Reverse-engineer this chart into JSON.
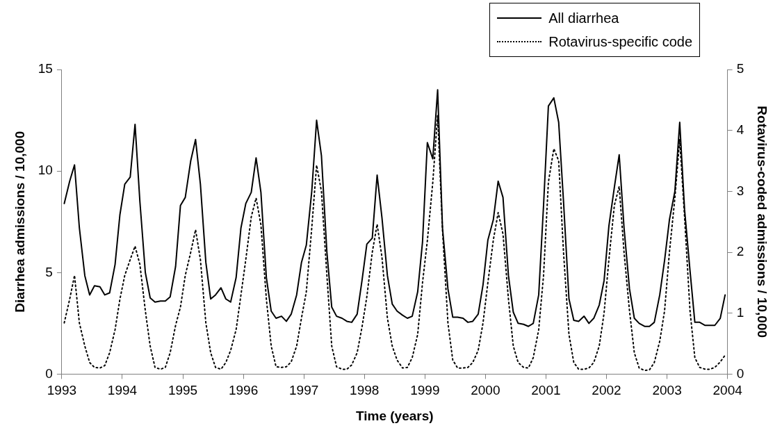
{
  "chart_data": {
    "type": "line",
    "xlabel": "Time (years)",
    "ylabel": "Diarrhea admissions / 10,000",
    "y2label": "Rotavirus-coded admissions / 10,000",
    "x": [
      1993.04,
      1993.13,
      1993.21,
      1993.29,
      1993.38,
      1993.46,
      1993.54,
      1993.63,
      1993.71,
      1993.79,
      1993.88,
      1993.96,
      1994.04,
      1994.13,
      1994.21,
      1994.29,
      1994.38,
      1994.46,
      1994.54,
      1994.63,
      1994.71,
      1994.79,
      1994.88,
      1994.96,
      1995.04,
      1995.13,
      1995.21,
      1995.29,
      1995.38,
      1995.46,
      1995.54,
      1995.63,
      1995.71,
      1995.79,
      1995.88,
      1995.96,
      1996.04,
      1996.13,
      1996.21,
      1996.29,
      1996.38,
      1996.46,
      1996.54,
      1996.63,
      1996.71,
      1996.79,
      1996.88,
      1996.96,
      1997.04,
      1997.13,
      1997.21,
      1997.29,
      1997.38,
      1997.46,
      1997.54,
      1997.63,
      1997.71,
      1997.79,
      1997.88,
      1997.96,
      1998.04,
      1998.13,
      1998.21,
      1998.29,
      1998.38,
      1998.46,
      1998.54,
      1998.63,
      1998.71,
      1998.79,
      1998.88,
      1998.96,
      1999.04,
      1999.13,
      1999.21,
      1999.29,
      1999.38,
      1999.46,
      1999.54,
      1999.63,
      1999.71,
      1999.79,
      1999.88,
      1999.96,
      2000.04,
      2000.13,
      2000.21,
      2000.29,
      2000.38,
      2000.46,
      2000.54,
      2000.63,
      2000.71,
      2000.79,
      2000.88,
      2000.96,
      2001.04,
      2001.13,
      2001.21,
      2001.29,
      2001.38,
      2001.46,
      2001.54,
      2001.63,
      2001.71,
      2001.79,
      2001.88,
      2001.96,
      2002.04,
      2002.13,
      2002.21,
      2002.29,
      2002.38,
      2002.46,
      2002.54,
      2002.63,
      2002.71,
      2002.79,
      2002.88,
      2002.96,
      2003.04,
      2003.13,
      2003.21,
      2003.29,
      2003.38,
      2003.46,
      2003.54,
      2003.63,
      2003.71,
      2003.79,
      2003.88,
      2003.96
    ],
    "series": [
      {
        "name": "All diarrhea",
        "color": "#000000",
        "line_style": "solid",
        "values": [
          8.4,
          9.5,
          10.3,
          7.2,
          4.85,
          3.9,
          4.35,
          4.3,
          3.9,
          4.0,
          5.4,
          7.85,
          9.35,
          9.7,
          12.3,
          8.5,
          5.0,
          3.75,
          3.55,
          3.6,
          3.6,
          3.8,
          5.3,
          8.3,
          8.7,
          10.5,
          11.55,
          9.35,
          5.5,
          3.7,
          3.9,
          4.25,
          3.7,
          3.55,
          4.75,
          7.2,
          8.4,
          8.95,
          10.65,
          8.95,
          4.75,
          3.1,
          2.75,
          2.85,
          2.6,
          2.95,
          3.9,
          5.5,
          6.35,
          9.0,
          12.5,
          10.75,
          6.0,
          3.3,
          2.85,
          2.75,
          2.6,
          2.55,
          2.95,
          4.6,
          6.4,
          6.7,
          9.8,
          7.7,
          4.85,
          3.45,
          3.1,
          2.9,
          2.75,
          2.85,
          4.05,
          6.5,
          11.4,
          10.6,
          14.0,
          7.2,
          4.2,
          2.8,
          2.8,
          2.75,
          2.55,
          2.6,
          2.95,
          4.4,
          6.6,
          7.6,
          9.5,
          8.7,
          4.85,
          3.05,
          2.5,
          2.45,
          2.35,
          2.5,
          3.9,
          8.3,
          13.2,
          13.6,
          12.4,
          8.5,
          3.7,
          2.65,
          2.6,
          2.85,
          2.5,
          2.75,
          3.4,
          4.6,
          7.3,
          9.2,
          10.8,
          7.2,
          4.2,
          2.75,
          2.5,
          2.35,
          2.35,
          2.55,
          3.9,
          5.6,
          7.6,
          9.0,
          12.4,
          8.1,
          5.1,
          2.55,
          2.55,
          2.4,
          2.4,
          2.4,
          2.75,
          3.9
        ]
      },
      {
        "name": "Rotavirus-specific code",
        "color": "#000000",
        "line_style": "dotted",
        "axis": "y2",
        "values": [
          0.84,
          1.23,
          1.62,
          0.84,
          0.46,
          0.19,
          0.11,
          0.1,
          0.14,
          0.35,
          0.73,
          1.23,
          1.62,
          1.88,
          2.1,
          1.8,
          1.04,
          0.46,
          0.11,
          0.08,
          0.11,
          0.35,
          0.8,
          1.1,
          1.62,
          2.0,
          2.37,
          1.88,
          0.84,
          0.35,
          0.11,
          0.08,
          0.19,
          0.39,
          0.73,
          1.3,
          1.88,
          2.58,
          2.89,
          2.45,
          1.23,
          0.46,
          0.12,
          0.11,
          0.12,
          0.2,
          0.46,
          0.92,
          1.35,
          2.4,
          3.43,
          3.0,
          1.62,
          0.46,
          0.12,
          0.08,
          0.08,
          0.15,
          0.35,
          0.77,
          1.27,
          2.0,
          2.46,
          1.92,
          0.92,
          0.46,
          0.23,
          0.1,
          0.11,
          0.27,
          0.65,
          1.5,
          2.19,
          3.15,
          4.25,
          2.37,
          0.84,
          0.23,
          0.1,
          0.1,
          0.11,
          0.19,
          0.39,
          0.84,
          1.5,
          2.2,
          2.65,
          2.3,
          1.23,
          0.46,
          0.19,
          0.11,
          0.1,
          0.27,
          0.73,
          1.62,
          3.15,
          3.7,
          3.5,
          2.0,
          0.65,
          0.19,
          0.08,
          0.08,
          0.1,
          0.19,
          0.46,
          1.0,
          1.88,
          2.77,
          3.08,
          2.0,
          1.04,
          0.35,
          0.1,
          0.06,
          0.07,
          0.19,
          0.54,
          1.04,
          2.0,
          2.89,
          3.85,
          2.58,
          1.04,
          0.27,
          0.11,
          0.08,
          0.08,
          0.11,
          0.2,
          0.31
        ]
      }
    ],
    "xlim": [
      1993,
      2004
    ],
    "xticks": [
      1993,
      1994,
      1995,
      1996,
      1997,
      1998,
      1999,
      2000,
      2001,
      2002,
      2003,
      2004
    ],
    "ylim": [
      0,
      15
    ],
    "yticks": [
      0,
      5,
      10,
      15
    ],
    "y2lim": [
      0,
      5
    ],
    "y2ticks": [
      0,
      1,
      2,
      3,
      4,
      5
    ],
    "grid": false,
    "legend": "top right",
    "marker": "none"
  }
}
